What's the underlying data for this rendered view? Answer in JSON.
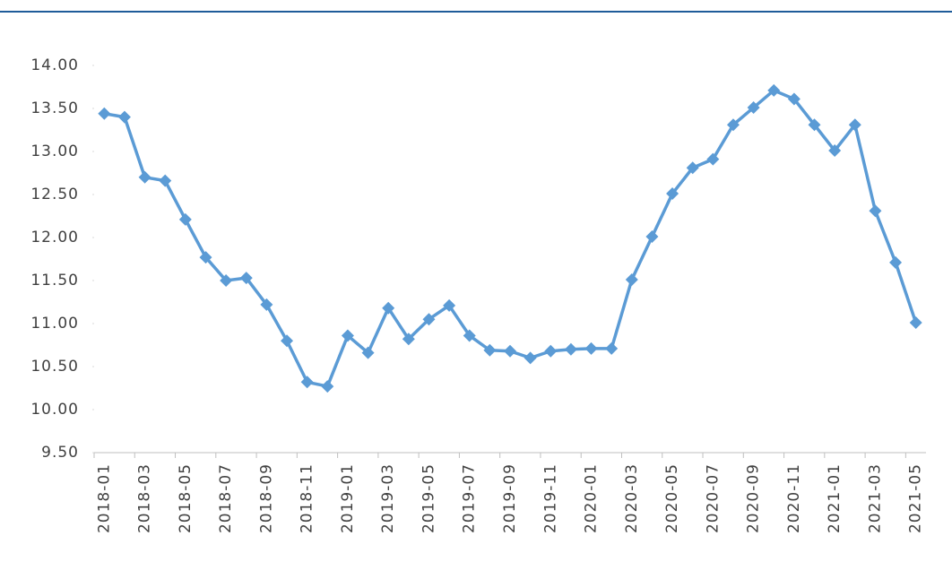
{
  "chart_data": {
    "type": "line",
    "categories": [
      "2018-01",
      null,
      "2018-03",
      null,
      "2018-05",
      null,
      "2018-07",
      null,
      "2018-09",
      null,
      "2018-11",
      null,
      "2019-01",
      null,
      "2019-03",
      null,
      "2019-05",
      null,
      "2019-07",
      null,
      "2019-09",
      null,
      "2019-11",
      null,
      "2020-01",
      null,
      "2020-03",
      null,
      "2020-05",
      null,
      "2020-07",
      null,
      "2020-09",
      null,
      "2020-11",
      null,
      "2021-01",
      null,
      "2021-03",
      null,
      "2021-05"
    ],
    "series": [
      {
        "name": null,
        "color": "#5b9bd5",
        "values": [
          13.44,
          13.4,
          12.7,
          12.66,
          12.21,
          11.77,
          11.5,
          11.53,
          11.22,
          10.8,
          10.32,
          10.27,
          10.86,
          10.66,
          11.18,
          10.82,
          11.05,
          11.21,
          10.86,
          10.69,
          10.68,
          10.6,
          10.68,
          10.7,
          10.71,
          10.71,
          11.51,
          12.01,
          12.51,
          12.81,
          12.91,
          13.31,
          13.51,
          13.71,
          13.61,
          13.31,
          13.01,
          13.31,
          12.31,
          11.71,
          11.01
        ]
      }
    ],
    "ylim": [
      9.5,
      14
    ],
    "yticks": [
      {
        "value": 9.5,
        "label": "9.50"
      },
      {
        "value": 10,
        "label": "10.00"
      },
      {
        "value": 10.5,
        "label": "10.50"
      },
      {
        "value": 11,
        "label": "11.00"
      },
      {
        "value": 11.5,
        "label": "11.50"
      },
      {
        "value": 12,
        "label": "12.00"
      },
      {
        "value": 12.5,
        "label": "12.50"
      },
      {
        "value": 13,
        "label": "13.00"
      },
      {
        "value": 13.5,
        "label": "13.50"
      },
      {
        "value": 14,
        "label": "14.00"
      }
    ],
    "grid": false
  }
}
